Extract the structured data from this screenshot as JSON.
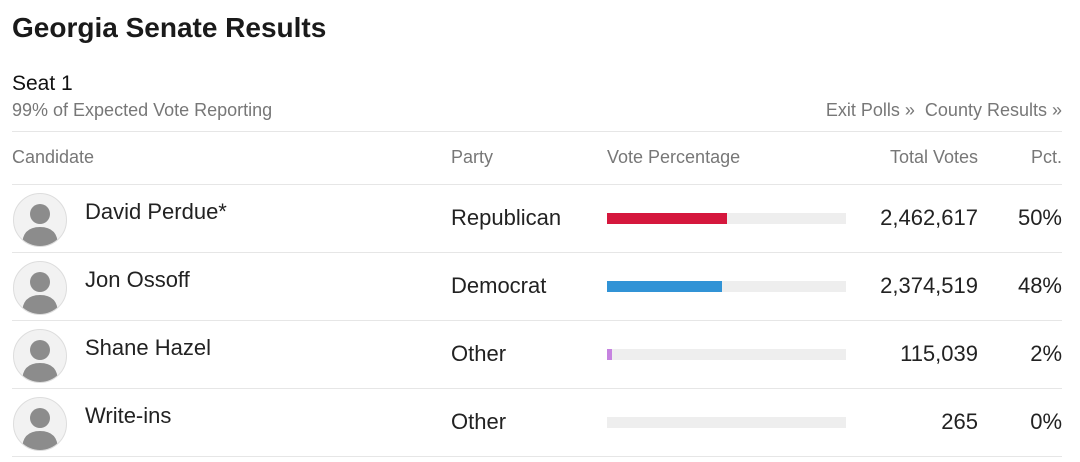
{
  "header": {
    "title": "Georgia Senate Results"
  },
  "seat": {
    "title": "Seat 1",
    "reporting": "99% of Expected Vote Reporting",
    "links": [
      "Exit Polls »",
      "County Results »"
    ]
  },
  "table": {
    "columns": [
      "Candidate",
      "Party",
      "Vote Percentage",
      "Total Votes",
      "Pct."
    ],
    "rows": [
      {
        "name": "David Perdue*",
        "party": "Republican",
        "votes": "2,462,617",
        "pct": {
          "value": 50,
          "label": "50%"
        },
        "color": "#d5173d"
      },
      {
        "name": "Jon Ossoff",
        "party": "Democrat",
        "votes": "2,374,519",
        "pct": {
          "value": 48,
          "label": "48%"
        },
        "color": "#3193d6"
      },
      {
        "name": "Shane Hazel",
        "party": "Other",
        "votes": "115,039",
        "pct": {
          "value": 2,
          "label": "2%"
        },
        "color": "#c683e0"
      },
      {
        "name": "Write-ins",
        "party": "Other",
        "votes": "265",
        "pct": {
          "value": 0,
          "label": "0%"
        }
      }
    ]
  }
}
